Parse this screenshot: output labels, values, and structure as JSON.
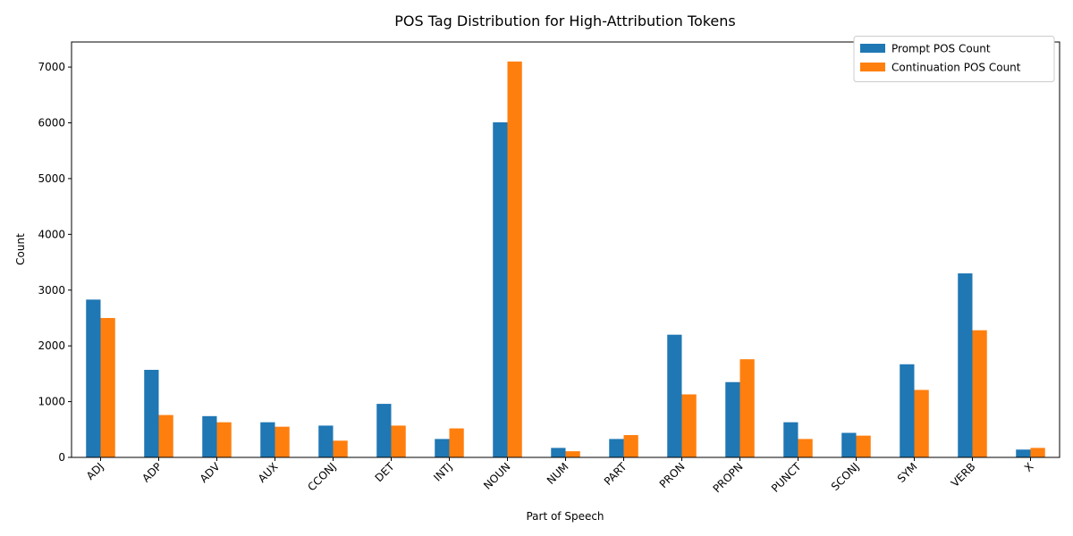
{
  "chart_data": {
    "type": "bar",
    "title": "POS Tag Distribution for High-Attribution Tokens",
    "xlabel": "Part of Speech",
    "ylabel": "Count",
    "ylim": [
      0,
      7450
    ],
    "yticks": [
      0,
      1000,
      2000,
      3000,
      4000,
      5000,
      6000,
      7000
    ],
    "grid": false,
    "legend_position": "top-right",
    "categories": [
      "ADJ",
      "ADP",
      "ADV",
      "AUX",
      "CCONJ",
      "DET",
      "INTJ",
      "NOUN",
      "NUM",
      "PART",
      "PRON",
      "PROPN",
      "PUNCT",
      "SCONJ",
      "SYM",
      "VERB",
      "X"
    ],
    "series": [
      {
        "name": "Prompt POS Count",
        "color": "#1f77b4",
        "values": [
          2830,
          1570,
          740,
          630,
          570,
          960,
          330,
          6010,
          170,
          330,
          2200,
          1350,
          630,
          440,
          1670,
          3300,
          140
        ]
      },
      {
        "name": "Continuation POS Count",
        "color": "#ff7f0e",
        "values": [
          2500,
          760,
          630,
          550,
          300,
          570,
          520,
          7100,
          110,
          400,
          1130,
          1760,
          330,
          390,
          1210,
          2280,
          170
        ]
      }
    ]
  }
}
